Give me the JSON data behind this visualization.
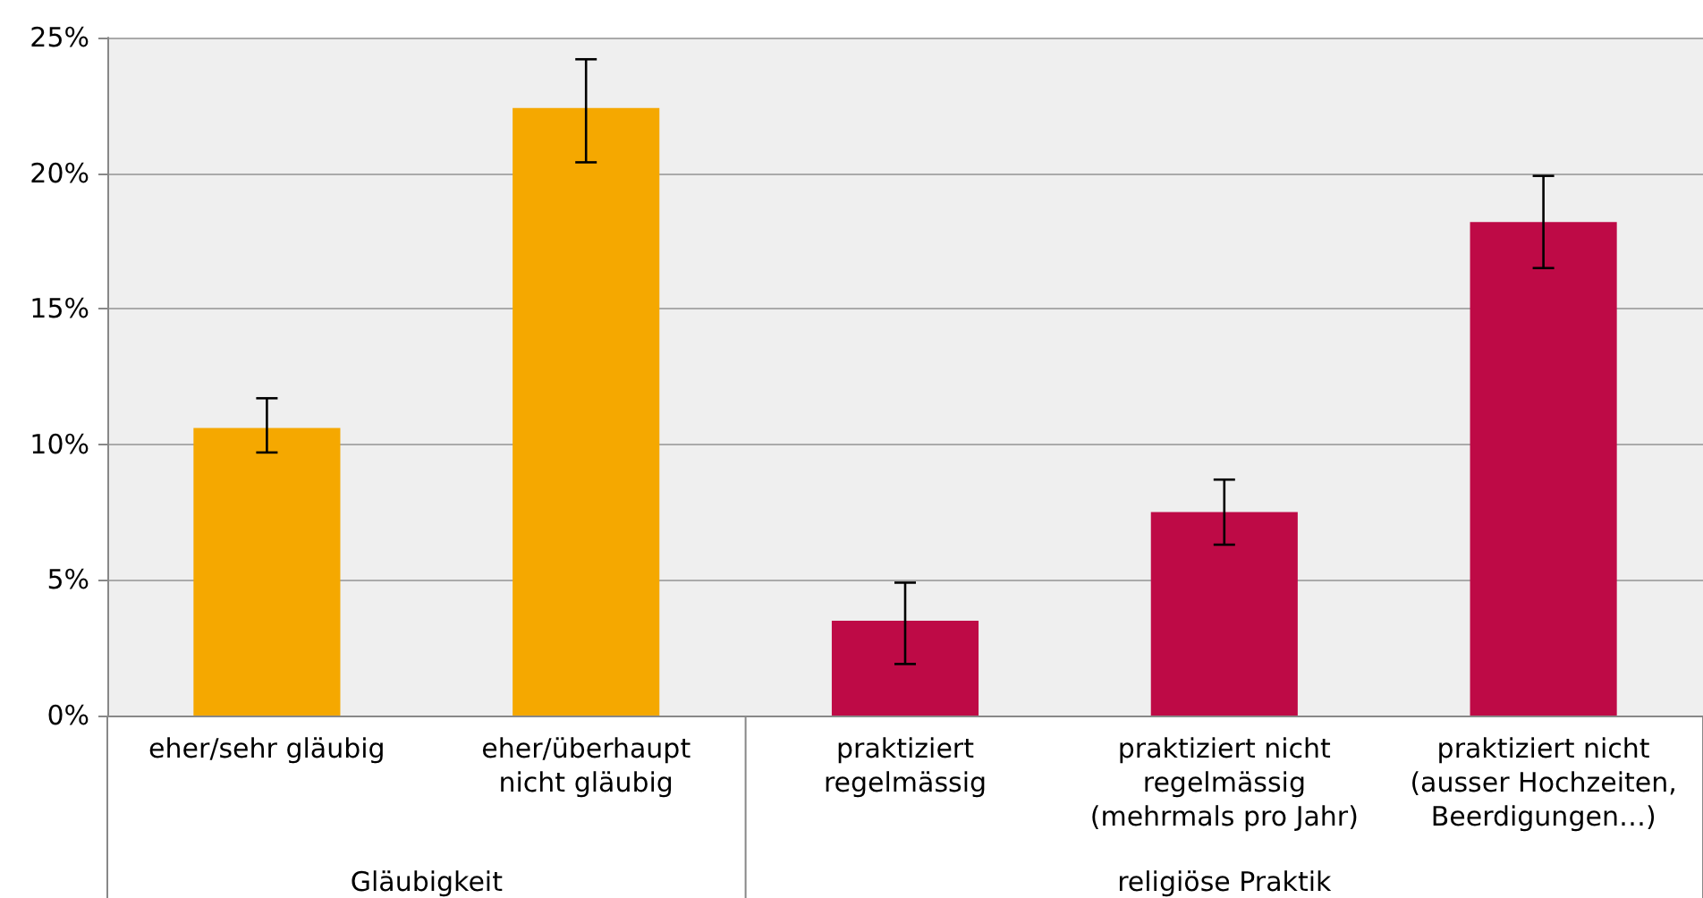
{
  "chart_data": {
    "type": "bar",
    "categories": [
      "eher/sehr gläubig",
      "eher/überhaupt\nnicht gläubig",
      "praktiziert\nregelmässig",
      "praktiziert nicht\nregelmässig\n(mehrmals pro Jahr)",
      "praktiziert nicht\n(ausser Hochzeiten,\nBeerdigungen…)"
    ],
    "values": [
      10.6,
      22.4,
      3.5,
      7.5,
      18.2
    ],
    "colors": [
      "#f5a800",
      "#f5a800",
      "#be0a46",
      "#be0a46",
      "#be0a46"
    ],
    "errors": [
      [
        9.7,
        11.7
      ],
      [
        20.4,
        24.2
      ],
      [
        1.9,
        4.9
      ],
      [
        6.3,
        8.7
      ],
      [
        16.5,
        19.9
      ]
    ],
    "ylim": [
      0,
      25
    ],
    "yticks": [
      {
        "value": 0,
        "label": "0%"
      },
      {
        "value": 5,
        "label": "5%"
      },
      {
        "value": 10,
        "label": "10%"
      },
      {
        "value": 15,
        "label": "15%"
      },
      {
        "value": 20,
        "label": "20%"
      },
      {
        "value": 25,
        "label": "25%"
      }
    ],
    "grid": "y",
    "annotations": [
      "Gläubigkeit",
      "religiöse Praktik"
    ]
  }
}
